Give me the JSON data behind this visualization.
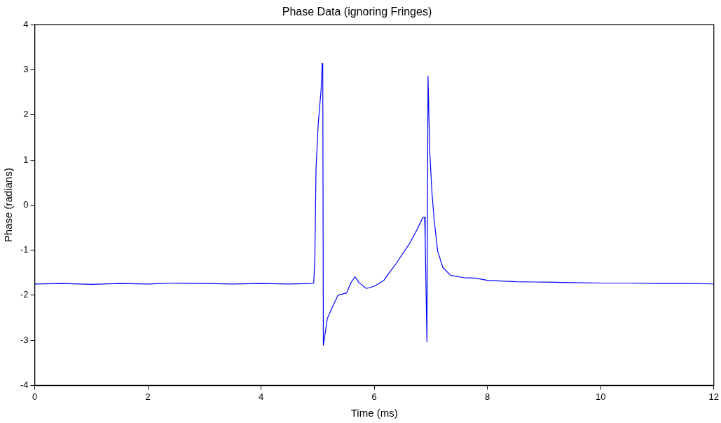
{
  "chart_data": {
    "type": "line",
    "title": "Phase Data (ignoring Fringes)",
    "xlabel": "Time (ms)",
    "ylabel": "Phase (radians)",
    "xlim": [
      0,
      12
    ],
    "xticks": [
      0,
      2,
      4,
      6,
      8,
      10,
      12
    ],
    "ylim": [
      -4,
      4
    ],
    "yticks": [
      -4,
      -3,
      -2,
      -1,
      0,
      1,
      2,
      3,
      4
    ],
    "grid": false,
    "legend": false,
    "marker": "none",
    "line_style": "solid",
    "series": [
      {
        "color": "#0000ff",
        "x": [
          0,
          0.5,
          1,
          1.5,
          2,
          2.5,
          3,
          3.5,
          4,
          4.5,
          4.9,
          4.93,
          4.95,
          4.97,
          5.01,
          5.06,
          5.08,
          5.09,
          5.1,
          5.12,
          5.17,
          5.26,
          5.36,
          5.51,
          5.59,
          5.66,
          5.73,
          5.86,
          6.0,
          6.17,
          6.27,
          6.38,
          6.5,
          6.63,
          6.75,
          6.83,
          6.86,
          6.89,
          6.9,
          6.93,
          6.95,
          6.98,
          7.02,
          7.06,
          7.12,
          7.21,
          7.35,
          7.58,
          7.78,
          8,
          8.5,
          9,
          9.5,
          10,
          10.5,
          11,
          11.5,
          12
        ],
        "values": [
          -1.75,
          -1.74,
          -1.76,
          -1.74,
          -1.75,
          -1.73,
          -1.74,
          -1.75,
          -1.74,
          -1.75,
          -1.74,
          -1.73,
          -1.18,
          0.78,
          1.81,
          2.55,
          3.14,
          3.14,
          -3.11,
          -2.95,
          -2.52,
          -2.26,
          -2.0,
          -1.95,
          -1.72,
          -1.59,
          -1.72,
          -1.85,
          -1.8,
          -1.67,
          -1.49,
          -1.31,
          -1.08,
          -0.84,
          -0.56,
          -0.35,
          -0.27,
          -0.27,
          -0.77,
          -3.03,
          2.86,
          1.19,
          0.26,
          -0.35,
          -1.02,
          -1.38,
          -1.56,
          -1.61,
          -1.62,
          -1.67,
          -1.7,
          -1.71,
          -1.72,
          -1.73,
          -1.73,
          -1.74,
          -1.74,
          -1.75
        ]
      }
    ]
  }
}
